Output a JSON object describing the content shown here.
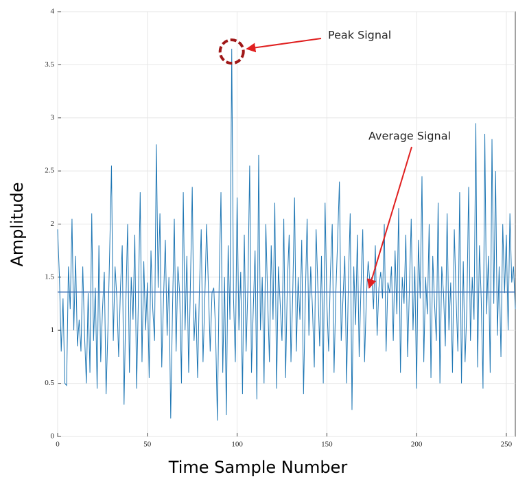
{
  "chart_data": {
    "type": "line",
    "xlabel": "Time Sample Number",
    "ylabel": "Amplitude",
    "series": [
      {
        "color": "#1f77b4",
        "values": [
          1.95,
          1.5,
          0.8,
          1.3,
          0.5,
          0.48,
          1.6,
          1.2,
          2.05,
          1.0,
          1.7,
          0.85,
          1.1,
          0.8,
          1.6,
          0.95,
          0.5,
          1.35,
          0.6,
          2.1,
          0.9,
          1.4,
          0.45,
          1.8,
          0.7,
          1.2,
          1.55,
          0.4,
          1.0,
          1.75,
          2.55,
          0.9,
          1.6,
          1.3,
          0.75,
          1.4,
          1.8,
          0.3,
          1.25,
          2.0,
          0.6,
          1.5,
          1.1,
          1.9,
          0.45,
          1.3,
          2.3,
          0.7,
          1.65,
          1.0,
          1.45,
          0.55,
          1.75,
          1.2,
          0.9,
          2.75,
          1.4,
          2.1,
          0.65,
          1.3,
          1.85,
          0.95,
          1.5,
          0.17,
          1.2,
          2.05,
          0.8,
          1.6,
          1.35,
          0.5,
          2.3,
          1.0,
          1.7,
          0.6,
          1.45,
          2.35,
          0.9,
          1.25,
          0.55,
          1.4,
          1.95,
          0.7,
          1.3,
          2.0,
          1.4,
          0.8,
          1.35,
          1.4,
          1.0,
          0.15,
          1.45,
          2.3,
          0.6,
          1.5,
          0.2,
          1.8,
          1.1,
          3.65,
          1.3,
          0.7,
          2.25,
          1.0,
          1.55,
          0.4,
          1.9,
          0.8,
          1.4,
          2.55,
          0.6,
          1.2,
          1.75,
          0.35,
          2.65,
          1.0,
          1.5,
          0.5,
          2.0,
          1.3,
          0.7,
          1.8,
          1.1,
          2.2,
          0.45,
          1.6,
          1.25,
          0.9,
          2.05,
          0.55,
          1.45,
          1.9,
          0.7,
          1.35,
          2.25,
          0.8,
          1.5,
          1.1,
          1.85,
          0.4,
          1.3,
          2.05,
          0.95,
          1.6,
          1.2,
          0.65,
          1.95,
          1.4,
          0.85,
          1.7,
          0.5,
          2.2,
          1.25,
          0.8,
          1.55,
          2.0,
          0.6,
          1.35,
          1.85,
          2.4,
          0.9,
          1.3,
          1.7,
          0.5,
          1.45,
          2.1,
          0.25,
          1.6,
          1.05,
          1.9,
          0.75,
          1.4,
          1.95,
          0.7,
          1.3,
          1.65,
          1.45,
          1.5,
          1.2,
          1.8,
          0.95,
          1.4,
          1.55,
          1.3,
          2.0,
          0.8,
          1.45,
          1.35,
          1.6,
          0.9,
          1.75,
          1.15,
          2.15,
          0.6,
          1.5,
          1.25,
          1.9,
          0.75,
          1.4,
          2.05,
          1.0,
          1.6,
          0.45,
          1.85,
          1.3,
          2.45,
          0.7,
          1.5,
          1.15,
          2.0,
          0.55,
          1.7,
          1.25,
          0.9,
          2.2,
          0.5,
          1.6,
          1.35,
          0.85,
          2.1,
          1.0,
          1.45,
          0.6,
          1.95,
          1.3,
          0.8,
          2.3,
          0.5,
          1.65,
          0.7,
          1.2,
          2.35,
          0.9,
          1.5,
          1.1,
          2.95,
          0.65,
          1.8,
          1.3,
          0.45,
          2.85,
          1.15,
          1.7,
          0.6,
          2.8,
          1.25,
          2.5,
          0.95,
          1.6,
          0.75,
          2.0,
          1.35,
          1.9,
          1.0,
          2.1,
          1.45,
          1.6,
          1.2
        ]
      }
    ],
    "average": 1.36,
    "average_color": "#3a6fb5",
    "annotations": [
      "Peak Signal",
      "Average Signal"
    ],
    "xlim": [
      0,
      255
    ],
    "xticks": [
      0,
      50,
      100,
      150,
      200,
      250
    ],
    "ylim": [
      0,
      4
    ],
    "yticks": [
      0,
      0.5,
      1,
      1.5,
      2,
      2.5,
      3,
      3.5,
      4
    ],
    "grid": true
  }
}
